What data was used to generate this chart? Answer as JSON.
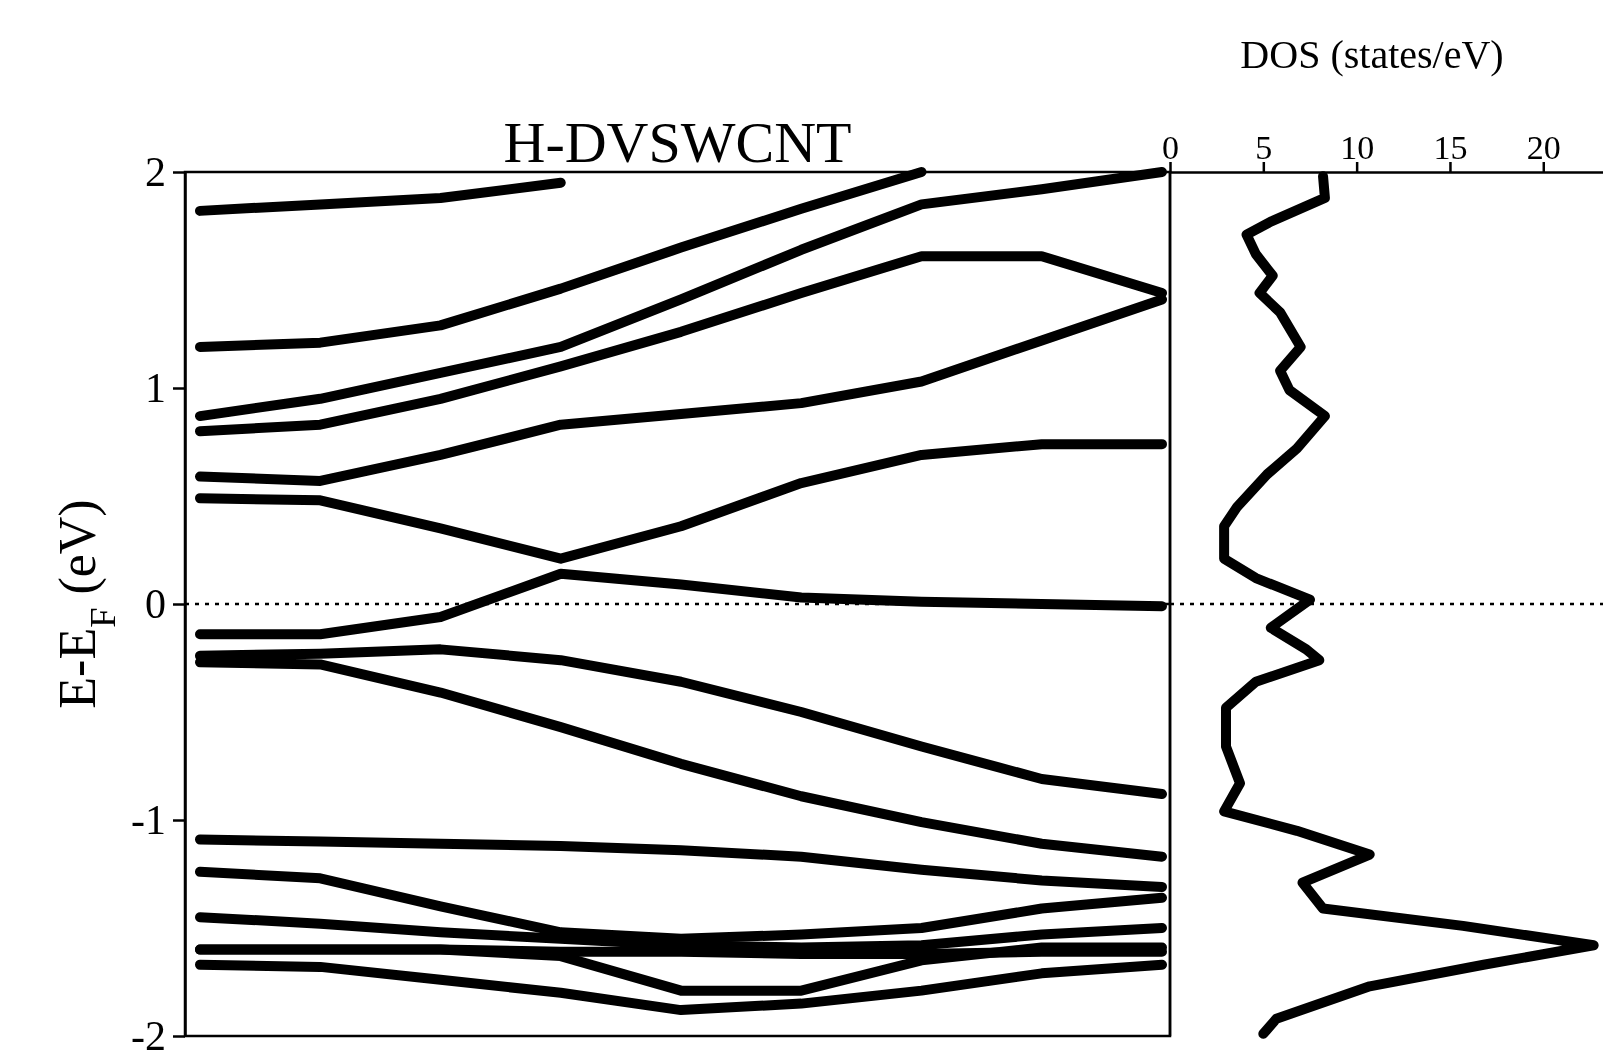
{
  "chart_data": [
    {
      "type": "line",
      "title": "H-DVSWCNT",
      "ylabel": "E-E$_{F}$ (eV)",
      "categories": [
        null,
        null,
        null,
        null,
        null,
        null,
        null,
        null,
        null
      ],
      "ylim": [
        -2,
        2
      ],
      "yticks": [
        -2,
        -1,
        0,
        1,
        2
      ],
      "tick_labels": "y",
      "grid": false,
      "line_style": "solid",
      "marker": "none",
      "ref_lines": [
        {
          "axis": "y",
          "value": 0,
          "line_style": "dotted",
          "color": "#000000"
        }
      ],
      "series": [
        {
          "color": "#000000",
          "values": [
            1.82,
            1.85,
            1.88,
            1.95,
            null,
            null,
            null,
            null,
            null
          ]
        },
        {
          "color": "#000000",
          "values": [
            1.19,
            1.21,
            1.29,
            1.46,
            1.65,
            1.83,
            2.0,
            null,
            null
          ]
        },
        {
          "color": "#000000",
          "values": [
            0.87,
            0.95,
            1.07,
            1.19,
            1.41,
            1.64,
            1.85,
            1.92,
            2.0
          ]
        },
        {
          "color": "#000000",
          "values": [
            0.8,
            0.83,
            0.95,
            1.1,
            1.26,
            1.44,
            1.61,
            1.61,
            1.44
          ]
        },
        {
          "color": "#000000",
          "values": [
            0.59,
            0.57,
            0.69,
            0.83,
            0.88,
            0.93,
            1.03,
            1.22,
            1.41
          ]
        },
        {
          "color": "#000000",
          "values": [
            0.49,
            0.48,
            0.35,
            0.21,
            0.36,
            0.56,
            0.69,
            0.74,
            0.74
          ]
        },
        {
          "color": "#000000",
          "values": [
            -0.14,
            -0.14,
            -0.06,
            0.14,
            0.09,
            0.03,
            0.01,
            0.0,
            -0.01
          ]
        },
        {
          "color": "#000000",
          "values": [
            -0.24,
            -0.23,
            -0.21,
            -0.26,
            -0.36,
            -0.5,
            -0.66,
            -0.81,
            -0.88
          ]
        },
        {
          "color": "#000000",
          "values": [
            -0.27,
            -0.28,
            -0.41,
            -0.57,
            -0.74,
            -0.89,
            -1.01,
            -1.11,
            -1.17
          ]
        },
        {
          "color": "#000000",
          "values": [
            -1.09,
            -1.1,
            -1.11,
            -1.12,
            -1.14,
            -1.17,
            -1.23,
            -1.28,
            -1.31
          ]
        },
        {
          "color": "#000000",
          "values": [
            -1.24,
            -1.27,
            -1.4,
            -1.52,
            -1.55,
            -1.53,
            -1.5,
            -1.41,
            -1.36
          ]
        },
        {
          "color": "#000000",
          "values": [
            -1.45,
            -1.48,
            -1.52,
            -1.55,
            -1.58,
            -1.59,
            -1.58,
            -1.53,
            -1.5
          ]
        },
        {
          "color": "#000000",
          "values": [
            -1.6,
            -1.6,
            -1.6,
            -1.61,
            -1.61,
            -1.62,
            -1.62,
            -1.61,
            -1.61
          ]
        },
        {
          "color": "#000000",
          "values": [
            -1.6,
            -1.6,
            -1.6,
            -1.63,
            -1.79,
            -1.79,
            -1.65,
            -1.59,
            -1.59
          ]
        },
        {
          "color": "#000000",
          "values": [
            -1.67,
            -1.68,
            -1.74,
            -1.8,
            -1.88,
            -1.85,
            -1.79,
            -1.71,
            -1.67
          ]
        }
      ]
    },
    {
      "type": "line",
      "xlabel": "DOS (states/eV)",
      "xlim": [
        0,
        23.2
      ],
      "xticks": [
        0,
        5,
        10,
        15,
        20
      ],
      "ylim": [
        -2,
        2
      ],
      "tick_labels": "x",
      "grid": false,
      "line_style": "solid",
      "marker": "none",
      "ref_lines": [
        {
          "axis": "y",
          "value": 0,
          "line_style": "dotted",
          "color": "#000000"
        }
      ],
      "series": [
        {
          "color": "#000000",
          "x": [
            8.2,
            8.3,
            5.4,
            4.1,
            4.6,
            5.5,
            4.8,
            5.9,
            7.0,
            5.9,
            6.4,
            8.3,
            6.8,
            5.2,
            3.6,
            2.9,
            2.9,
            4.6,
            7.5,
            5.4,
            7.3,
            8.0,
            4.6,
            3.0,
            3.0,
            3.75,
            2.9,
            6.8,
            10.7,
            7.1,
            8.2,
            15.7,
            22.7,
            16.8,
            10.7,
            5.7,
            5.0
          ],
          "values": [
            1.98,
            1.88,
            1.77,
            1.71,
            1.62,
            1.52,
            1.44,
            1.35,
            1.19,
            1.08,
            0.99,
            0.87,
            0.72,
            0.6,
            0.45,
            0.36,
            0.21,
            0.12,
            0.02,
            -0.11,
            -0.21,
            -0.26,
            -0.36,
            -0.48,
            -0.66,
            -0.83,
            -0.96,
            -1.05,
            -1.16,
            -1.29,
            -1.41,
            -1.49,
            -1.58,
            -1.67,
            -1.77,
            -1.92,
            -1.99
          ]
        }
      ]
    }
  ]
}
